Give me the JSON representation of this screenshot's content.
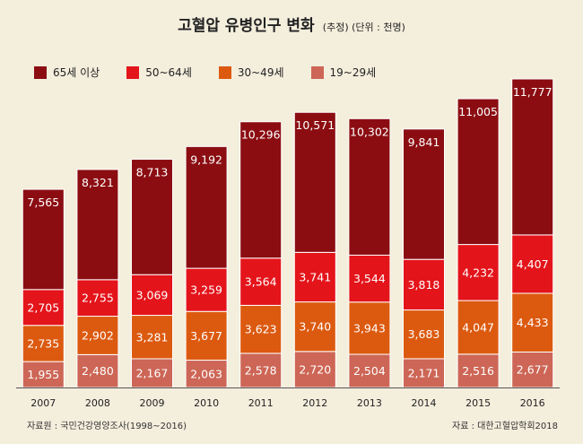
{
  "header": {
    "title": "고혈압 유병인구 변화",
    "subtitle": "(추정) (단위 : 천명)"
  },
  "colors": {
    "background": "#f4eedd",
    "s65": "#8b0d12",
    "s50": "#e4141b",
    "s30": "#dc5a10",
    "s19": "#cd6656",
    "axis": "#555555"
  },
  "chart_data": {
    "type": "bar",
    "stacked": true,
    "title": "고혈압 유병인구 변화",
    "subtitle": "(추정) (단위 : 천명)",
    "categories": [
      "2007",
      "2008",
      "2009",
      "2010",
      "2011",
      "2012",
      "2013",
      "2014",
      "2015",
      "2016"
    ],
    "series": [
      {
        "name": "19~29세",
        "color": "#cd6656",
        "values": [
          1955,
          2480,
          2167,
          2063,
          2578,
          2720,
          2504,
          2171,
          2516,
          2677
        ]
      },
      {
        "name": "30~49세",
        "color": "#dc5a10",
        "values": [
          2735,
          2902,
          3281,
          3677,
          3623,
          3740,
          3943,
          3683,
          4047,
          4433
        ]
      },
      {
        "name": "50~64세",
        "color": "#e4141b",
        "values": [
          2705,
          2755,
          3069,
          3259,
          3564,
          3741,
          3544,
          3818,
          4232,
          4407
        ]
      },
      {
        "name": "65세 이상",
        "color": "#8b0d12",
        "values": [
          7565,
          8321,
          8713,
          9192,
          10296,
          10571,
          10302,
          9841,
          11005,
          11777
        ]
      }
    ],
    "value_labels": [
      [
        "1,955",
        "2,480",
        "2,167",
        "2,063",
        "2,578",
        "2,720",
        "2,504",
        "2,171",
        "2,516",
        "2,677"
      ],
      [
        "2,735",
        "2,902",
        "3,281",
        "3,677",
        "3,623",
        "3,740",
        "3,943",
        "3,683",
        "4,047",
        "4,433"
      ],
      [
        "2,705",
        "2,755",
        "3,069",
        "3,259",
        "3,564",
        "3,741",
        "3,544",
        "3,818",
        "4,232",
        "4,407"
      ],
      [
        "7,565",
        "8,321",
        "8,713",
        "9,192",
        "10,296",
        "10,571",
        "10,302",
        "9,841",
        "11,005",
        "11,777"
      ]
    ],
    "legend": [
      "65세 이상",
      "50~64세",
      "30~49세",
      "19~29세"
    ],
    "legend_position": "top-left",
    "ylim": [
      0,
      23294
    ],
    "grid": false
  },
  "footer": {
    "source_left": "자료원 : 국민건강영양조사(1998~2016)",
    "source_right": "자료 : 대한고혈압학회2018"
  }
}
